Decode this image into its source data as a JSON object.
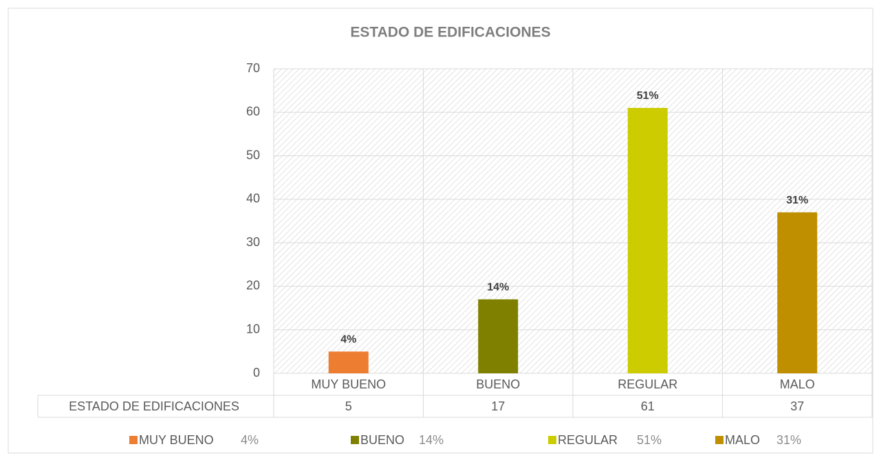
{
  "chart_data": {
    "type": "bar",
    "title": "ESTADO DE EDIFICACIONES",
    "categories": [
      "MUY BUENO",
      "BUENO",
      "REGULAR",
      "MALO"
    ],
    "series": [
      {
        "name": "ESTADO DE EDIFICACIONES",
        "values": [
          5,
          17,
          61,
          37
        ],
        "data_labels": [
          "4%",
          "14%",
          "51%",
          "31%"
        ],
        "colors": [
          "#ed7d31",
          "#808000",
          "#cccc00",
          "#bf8f00"
        ]
      }
    ],
    "ylim": [
      0,
      70
    ],
    "yticks": [
      0,
      10,
      20,
      30,
      40,
      50,
      60,
      70
    ],
    "grid": true
  }
}
